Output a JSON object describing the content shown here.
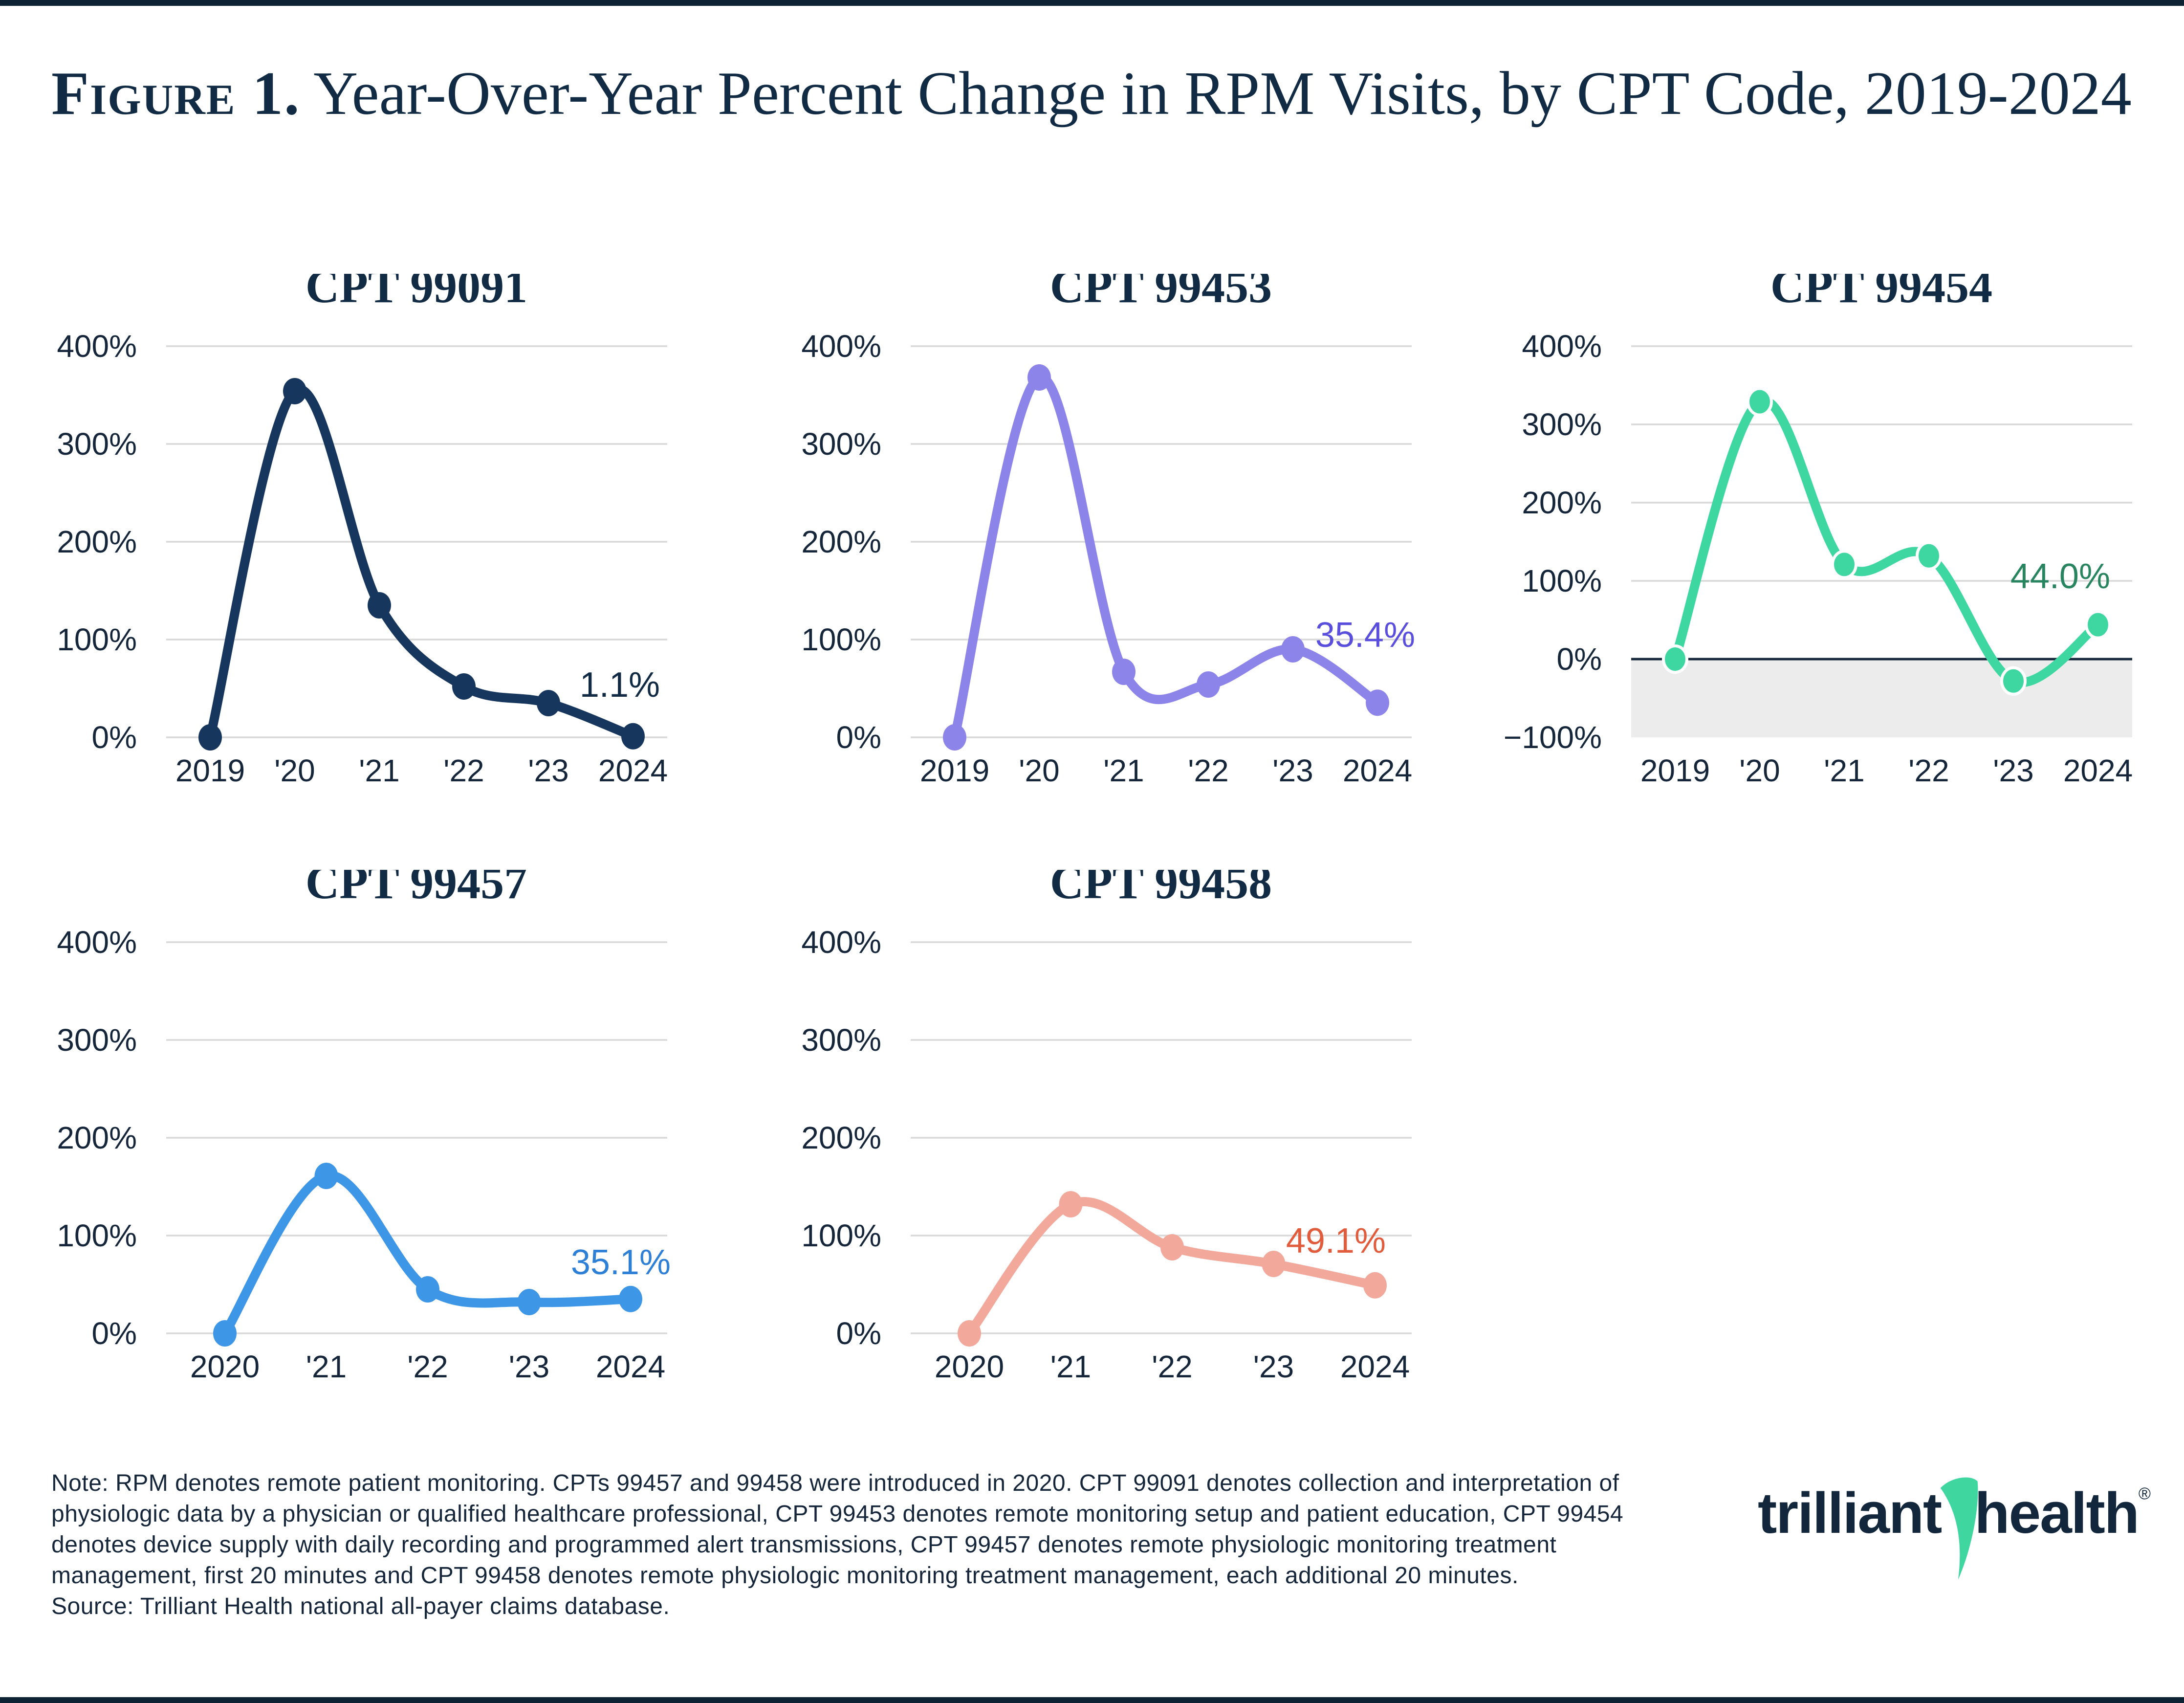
{
  "page": {
    "title": {
      "prefix": "Figure 1.",
      "rest": "Year-Over-Year Percent Change in RPM Visits, by CPT Code, 2019-2024"
    },
    "footer": {
      "note": "Note: RPM denotes remote patient monitoring. CPTs 99457 and 99458 were introduced in 2020. CPT 99091 denotes collection and interpretation of physiologic data by a physician or qualified healthcare professional, CPT 99453 denotes remote monitoring setup and patient education, CPT 99454 denotes device supply with daily recording and programmed alert transmissions, CPT 99457 denotes remote physiologic monitoring treatment management, first 20 minutes and  CPT 99458 denotes remote physiologic monitoring treatment management, each additional 20 minutes.",
      "source": "Source: Trilliant Health national all-payer claims database."
    },
    "logo": {
      "word1": "trilliant",
      "word2": "health",
      "registered": "®",
      "swoosh_icon": "green-swoosh-icon"
    }
  },
  "colors": {
    "navy_text": "#15263a",
    "title_navy": "#122b44",
    "grid": "#d9d9d9",
    "negative_shade": "#ececec",
    "zero_line": "#16283c",
    "edge_bar": "#0d2233",
    "background": "#ffffff",
    "logo_green": "#3fd6a0"
  },
  "chart_data": [
    {
      "type": "line",
      "title": "CPT 99091",
      "x": [
        "2019",
        "'20",
        "'21",
        "'22",
        "'23",
        "2024"
      ],
      "values": [
        0,
        354,
        135,
        52,
        35,
        1.1
      ],
      "end_label": "1.1%",
      "line_color": "#16365e",
      "end_label_color": "#122b44",
      "ylim": [
        0,
        400
      ],
      "ytick_step": 100,
      "ytick_suffix": "%",
      "grid": true,
      "negative_shade": false,
      "zero_line": false,
      "label_pos": {
        "x": 1310,
        "y": 865
      }
    },
    {
      "type": "line",
      "title": "CPT 99453",
      "x": [
        "2019",
        "'20",
        "'21",
        "'22",
        "'23",
        "2024"
      ],
      "values": [
        0,
        368,
        67,
        54,
        90,
        35.4
      ],
      "end_label": "35.4%",
      "line_color": "#8d84e9",
      "end_label_color": "#5a4edc",
      "ylim": [
        0,
        400
      ],
      "ytick_step": 100,
      "ytick_suffix": "%",
      "grid": true,
      "negative_shade": false,
      "zero_line": false,
      "label_pos": {
        "x": 1332,
        "y": 763
      }
    },
    {
      "type": "line",
      "title": "CPT 99454",
      "x": [
        "2019",
        "'20",
        "'21",
        "'22",
        "'23",
        "2024"
      ],
      "values": [
        0,
        329,
        121,
        132,
        -28,
        44.0
      ],
      "end_label": "44.0%",
      "line_color": "#3ed7a1",
      "end_label_color": "#28855f",
      "ylim": [
        -100,
        400
      ],
      "ytick_step": 100,
      "ytick_suffix": "%",
      "grid": true,
      "negative_shade": true,
      "zero_line": true,
      "marker_outline": "#ffffff",
      "label_pos": {
        "x": 1280,
        "y": 643
      }
    },
    {
      "type": "line",
      "title": "CPT 99457",
      "x": [
        "2020",
        "'21",
        "'22",
        "'23",
        "2024"
      ],
      "values": [
        0,
        161,
        45,
        32,
        35.1
      ],
      "end_label": "35.1%",
      "line_color": "#3e96e6",
      "end_label_color": "#2e7fd6",
      "ylim": [
        0,
        400
      ],
      "ytick_step": 100,
      "ytick_suffix": "%",
      "grid": true,
      "negative_shade": false,
      "zero_line": false,
      "label_pos": {
        "x": 1332,
        "y": 827
      }
    },
    {
      "type": "line",
      "title": "CPT 99458",
      "x": [
        "2020",
        "'21",
        "'22",
        "'23",
        "2024"
      ],
      "values": [
        0,
        132,
        88,
        71,
        49.1
      ],
      "end_label": "49.1%",
      "line_color": "#f2a89b",
      "end_label_color": "#e15c3c",
      "ylim": [
        0,
        400
      ],
      "ytick_step": 100,
      "ytick_suffix": "%",
      "grid": true,
      "negative_shade": false,
      "zero_line": false,
      "label_pos": {
        "x": 1272,
        "y": 783
      }
    }
  ]
}
